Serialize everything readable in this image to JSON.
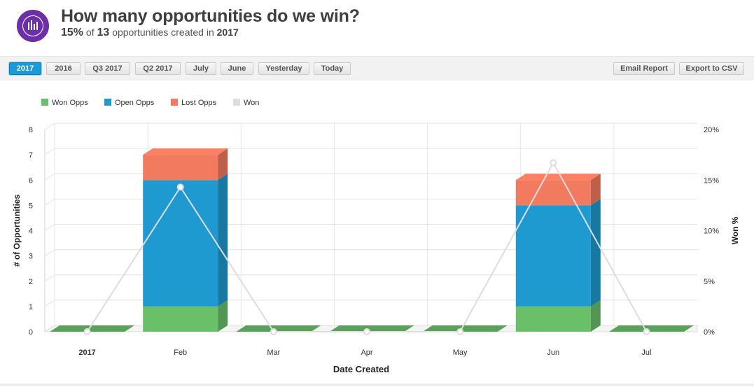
{
  "header": {
    "title": "How many opportunities do we win?",
    "subtitle": {
      "percent": "15%",
      "of": "of",
      "count": "13",
      "middle": "opportunities created in",
      "year": "2017"
    }
  },
  "toolbar": {
    "filters": [
      {
        "label": "2017",
        "active": true
      },
      {
        "label": "2016",
        "active": false
      },
      {
        "label": "Q3 2017",
        "active": false
      },
      {
        "label": "Q2 2017",
        "active": false
      },
      {
        "label": "July",
        "active": false
      },
      {
        "label": "June",
        "active": false
      },
      {
        "label": "Yesterday",
        "active": false
      },
      {
        "label": "Today",
        "active": false
      }
    ],
    "email_label": "Email Report",
    "export_label": "Export to CSV"
  },
  "colors": {
    "accent": "#1a9bd7",
    "logo": "#6b2fa8",
    "won": "#6abf69",
    "open": "#1e9ad0",
    "lost": "#f27a5e",
    "won_pct": "#dddddd"
  },
  "chart_data": {
    "type": "bar",
    "stacked": true,
    "categories": [
      "2017",
      "Feb",
      "Mar",
      "Apr",
      "May",
      "Jun",
      "Jul"
    ],
    "series": [
      {
        "name": "Won Opps",
        "axis": "left",
        "values": [
          0,
          1,
          0,
          0,
          0,
          1,
          0
        ]
      },
      {
        "name": "Open Opps",
        "axis": "left",
        "values": [
          0,
          5,
          0,
          0,
          0,
          4,
          0
        ]
      },
      {
        "name": "Lost Opps",
        "axis": "left",
        "values": [
          0,
          1,
          0,
          0,
          0,
          1,
          0
        ]
      },
      {
        "name": "Won",
        "axis": "right",
        "type": "line",
        "values": [
          0,
          14.3,
          0,
          0,
          0,
          16.7,
          0
        ]
      }
    ],
    "xlabel": "Date Created",
    "ylabel": "# of Opportunities",
    "y2label": "Won %",
    "ylim": [
      0,
      8
    ],
    "y2lim": [
      0,
      20
    ],
    "yticks": [
      "0",
      "1",
      "2",
      "3",
      "4",
      "5",
      "6",
      "7",
      "8"
    ],
    "y2ticks": [
      "0%",
      "5%",
      "10%",
      "15%",
      "20%"
    ],
    "legend": "top-left",
    "grid": true
  }
}
